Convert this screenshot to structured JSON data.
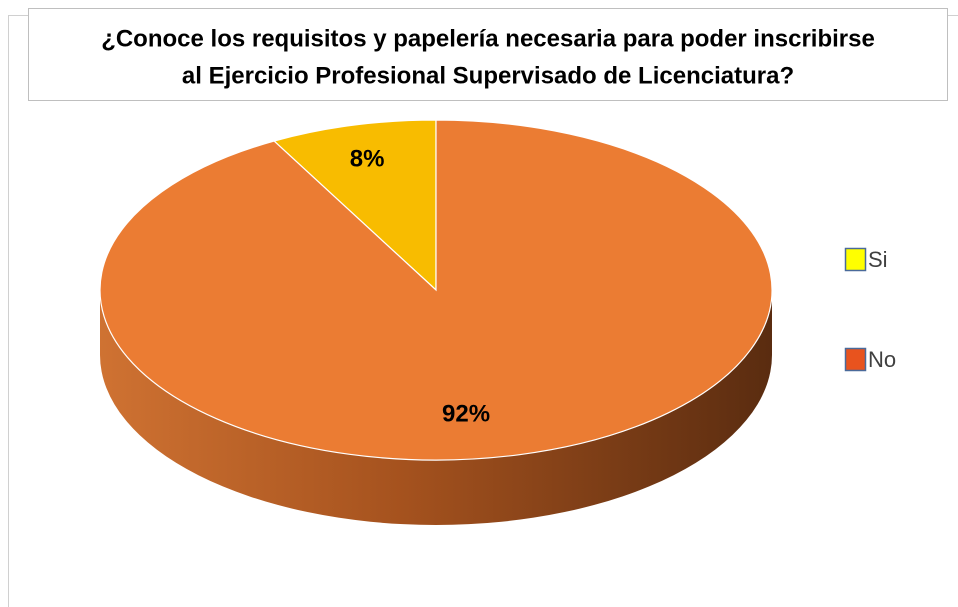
{
  "chart_data": {
    "type": "pie",
    "title": [
      "¿Conoce los requisitos y papelería necesaria para poder inscribirse",
      "al Ejercicio Profesional Supervisado de Licenciatura?"
    ],
    "categories": [
      "Si",
      "No"
    ],
    "values": [
      8,
      92
    ],
    "value_labels": [
      "8%",
      "92%"
    ],
    "colors": [
      "#f8bc00",
      "#eb7c33"
    ],
    "legend_colors": [
      "#ffff00",
      "#e8531e"
    ],
    "legend": "right"
  }
}
